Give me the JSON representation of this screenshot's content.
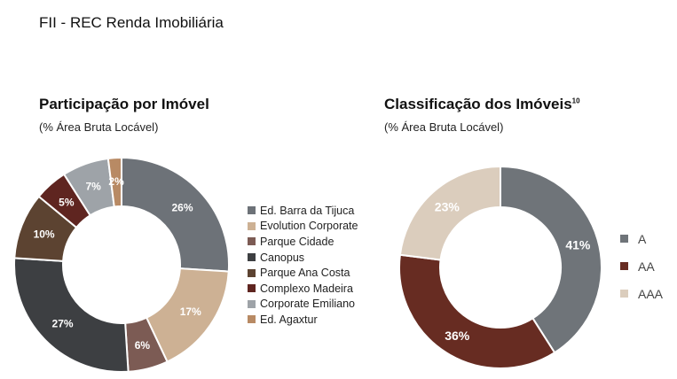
{
  "page": {
    "title": "FII - REC Renda Imobiliária"
  },
  "chart_data": [
    {
      "type": "pie",
      "variant": "donut",
      "title": "Participação por Imóvel",
      "subtitle": "(% Área Bruta Locável)",
      "legend_position": "right",
      "categories": [
        "Ed. Barra da Tijuca",
        "Evolution Corporate",
        "Parque Cidade",
        "Canopus",
        "Parque Ana Costa",
        "Complexo Madeira",
        "Corporate Emiliano",
        "Ed. Agaxtur"
      ],
      "values": [
        26,
        17,
        6,
        27,
        10,
        5,
        7,
        2
      ],
      "labels": [
        "26%",
        "17%",
        "6%",
        "27%",
        "10%",
        "5%",
        "7%",
        "2%"
      ],
      "colors": [
        "#6d7278",
        "#cdb194",
        "#7c5b54",
        "#3d3f42",
        "#5c4331",
        "#5f2520",
        "#9ea3a8",
        "#b88a64"
      ],
      "label_colors": [
        "#ffffff",
        "#ffffff",
        "#ffffff",
        "#ffffff",
        "#ffffff",
        "#ffffff",
        "#ffffff",
        "#ffffff"
      ]
    },
    {
      "type": "pie",
      "variant": "donut",
      "title": "Classificação dos Imóveis",
      "title_superscript": "10",
      "subtitle": "(% Área Bruta Locável)",
      "legend_position": "right",
      "categories": [
        "A",
        "AA",
        "AAA"
      ],
      "values": [
        41,
        36,
        23
      ],
      "labels": [
        "41%",
        "36%",
        "23%"
      ],
      "colors": [
        "#6f7479",
        "#672c22",
        "#dbcdbd"
      ],
      "label_colors": [
        "#ffffff",
        "#ffffff",
        "#ffffff"
      ]
    }
  ]
}
